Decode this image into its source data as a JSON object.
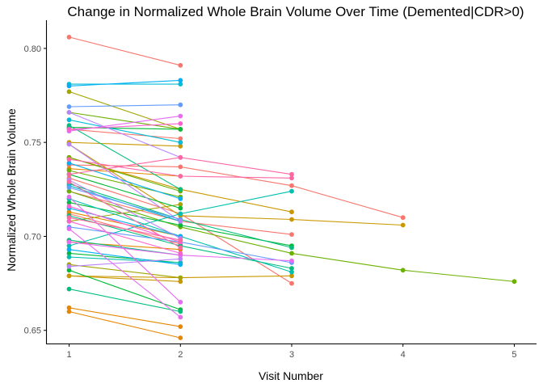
{
  "chart_data": {
    "type": "line",
    "title": "Change in Normalized Whole Brain Volume Over Time (Demented|CDR>0)",
    "xlabel": "Visit Number",
    "ylabel": "Normalized Whole Brain Volume",
    "xlim": [
      0.8,
      5.2
    ],
    "ylim": [
      0.643,
      0.815
    ],
    "xticks": [
      1,
      2,
      3,
      4,
      5
    ],
    "yticks": [
      0.65,
      0.7,
      0.75,
      0.8
    ],
    "ytick_labels": [
      "0.65",
      "0.70",
      "0.75",
      "0.80"
    ],
    "grid": false,
    "legend": "none",
    "series": [
      {
        "color": "#F8766D",
        "x": [
          1,
          2
        ],
        "y": [
          0.806,
          0.791
        ]
      },
      {
        "color": "#F8766D",
        "x": [
          1,
          2,
          3,
          4
        ],
        "y": [
          0.738,
          0.737,
          0.727,
          0.71
        ]
      },
      {
        "color": "#F8766D",
        "x": [
          1,
          2
        ],
        "y": [
          0.757,
          0.752
        ]
      },
      {
        "color": "#F8766D",
        "x": [
          1,
          2
        ],
        "y": [
          0.712,
          0.696
        ]
      },
      {
        "color": "#F8766D",
        "x": [
          1,
          2,
          3
        ],
        "y": [
          0.724,
          0.708,
          0.701
        ]
      },
      {
        "color": "#F8766D",
        "x": [
          1,
          2,
          3
        ],
        "y": [
          0.731,
          0.712,
          0.675
        ]
      },
      {
        "color": "#E58700",
        "x": [
          1,
          2
        ],
        "y": [
          0.662,
          0.652
        ]
      },
      {
        "color": "#E58700",
        "x": [
          1,
          2
        ],
        "y": [
          0.66,
          0.646
        ]
      },
      {
        "color": "#E58700",
        "x": [
          1,
          2
        ],
        "y": [
          0.697,
          0.693
        ]
      },
      {
        "color": "#E58700",
        "x": [
          1,
          2
        ],
        "y": [
          0.736,
          0.732
        ]
      },
      {
        "color": "#E58700",
        "x": [
          1,
          2
        ],
        "y": [
          0.713,
          0.7
        ]
      },
      {
        "color": "#C99800",
        "x": [
          1,
          2,
          3,
          4
        ],
        "y": [
          0.749,
          0.711,
          0.709,
          0.706
        ]
      },
      {
        "color": "#C99800",
        "x": [
          1,
          2
        ],
        "y": [
          0.75,
          0.748
        ]
      },
      {
        "color": "#C99800",
        "x": [
          1,
          2,
          3
        ],
        "y": [
          0.742,
          0.725,
          0.713
        ]
      },
      {
        "color": "#C99800",
        "x": [
          1,
          2
        ],
        "y": [
          0.679,
          0.676
        ]
      },
      {
        "color": "#C99800",
        "x": [
          1,
          2,
          3
        ],
        "y": [
          0.679,
          0.678,
          0.679
        ]
      },
      {
        "color": "#A3A500",
        "x": [
          1,
          2
        ],
        "y": [
          0.777,
          0.757
        ]
      },
      {
        "color": "#A3A500",
        "x": [
          1,
          2
        ],
        "y": [
          0.685,
          0.678
        ]
      },
      {
        "color": "#A3A500",
        "x": [
          1,
          2
        ],
        "y": [
          0.708,
          0.717
        ]
      },
      {
        "color": "#6BB100",
        "x": [
          1,
          2,
          3,
          4,
          5
        ],
        "y": [
          0.724,
          0.705,
          0.691,
          0.682,
          0.676
        ]
      },
      {
        "color": "#6BB100",
        "x": [
          1,
          2
        ],
        "y": [
          0.742,
          0.724
        ]
      },
      {
        "color": "#6BB100",
        "x": [
          1,
          2
        ],
        "y": [
          0.766,
          0.757
        ]
      },
      {
        "color": "#6BB100",
        "x": [
          1,
          2
        ],
        "y": [
          0.735,
          0.721
        ]
      },
      {
        "color": "#00BA38",
        "x": [
          1,
          2
        ],
        "y": [
          0.758,
          0.757
        ]
      },
      {
        "color": "#00BA38",
        "x": [
          1,
          2,
          3
        ],
        "y": [
          0.718,
          0.706,
          0.695
        ]
      },
      {
        "color": "#00BA38",
        "x": [
          1,
          2
        ],
        "y": [
          0.691,
          0.686
        ]
      },
      {
        "color": "#00BA38",
        "x": [
          1,
          2
        ],
        "y": [
          0.733,
          0.715
        ]
      },
      {
        "color": "#00BA38",
        "x": [
          1,
          2
        ],
        "y": [
          0.682,
          0.661
        ]
      },
      {
        "color": "#00BF7D",
        "x": [
          1,
          2
        ],
        "y": [
          0.759,
          0.725
        ]
      },
      {
        "color": "#00BF7D",
        "x": [
          1,
          2,
          3
        ],
        "y": [
          0.728,
          0.709,
          0.694
        ]
      },
      {
        "color": "#00BF7D",
        "x": [
          1,
          2,
          3
        ],
        "y": [
          0.711,
          0.695,
          0.683
        ]
      },
      {
        "color": "#00BF7D",
        "x": [
          1,
          2
        ],
        "y": [
          0.698,
          0.69
        ]
      },
      {
        "color": "#00BF7D",
        "x": [
          1,
          2
        ],
        "y": [
          0.672,
          0.66
        ]
      },
      {
        "color": "#00C0AF",
        "x": [
          1,
          2,
          3
        ],
        "y": [
          0.695,
          0.712,
          0.724
        ]
      },
      {
        "color": "#00C0AF",
        "x": [
          1,
          2,
          3
        ],
        "y": [
          0.72,
          0.7,
          0.681
        ]
      },
      {
        "color": "#00C0AF",
        "x": [
          1,
          2
        ],
        "y": [
          0.689,
          0.686
        ]
      },
      {
        "color": "#00BCD8",
        "x": [
          1,
          2
        ],
        "y": [
          0.781,
          0.781
        ]
      },
      {
        "color": "#00BCD8",
        "x": [
          1,
          2
        ],
        "y": [
          0.762,
          0.75
        ]
      },
      {
        "color": "#00BCD8",
        "x": [
          1,
          2
        ],
        "y": [
          0.727,
          0.708
        ]
      },
      {
        "color": "#00B0F6",
        "x": [
          1,
          2
        ],
        "y": [
          0.78,
          0.783
        ]
      },
      {
        "color": "#00B0F6",
        "x": [
          1,
          2
        ],
        "y": [
          0.715,
          0.7
        ]
      },
      {
        "color": "#00B0F6",
        "x": [
          1,
          2
        ],
        "y": [
          0.739,
          0.72
        ]
      },
      {
        "color": "#00B0F6",
        "x": [
          1,
          2
        ],
        "y": [
          0.693,
          0.685
        ]
      },
      {
        "color": "#619CFF",
        "x": [
          1,
          2
        ],
        "y": [
          0.769,
          0.77
        ]
      },
      {
        "color": "#619CFF",
        "x": [
          1,
          2
        ],
        "y": [
          0.726,
          0.709
        ]
      },
      {
        "color": "#619CFF",
        "x": [
          1,
          2,
          3
        ],
        "y": [
          0.705,
          0.697,
          0.686
        ]
      },
      {
        "color": "#B983FF",
        "x": [
          1,
          2
        ],
        "y": [
          0.766,
          0.742
        ]
      },
      {
        "color": "#B983FF",
        "x": [
          1,
          2
        ],
        "y": [
          0.749,
          0.708
        ]
      },
      {
        "color": "#B983FF",
        "x": [
          1,
          2
        ],
        "y": [
          0.73,
          0.699
        ]
      },
      {
        "color": "#B983FF",
        "x": [
          1,
          2
        ],
        "y": [
          0.684,
          0.688
        ]
      },
      {
        "color": "#E76BF3",
        "x": [
          1,
          2
        ],
        "y": [
          0.756,
          0.764
        ]
      },
      {
        "color": "#E76BF3",
        "x": [
          1,
          2
        ],
        "y": [
          0.721,
          0.665
        ]
      },
      {
        "color": "#E76BF3",
        "x": [
          1,
          2
        ],
        "y": [
          0.704,
          0.657
        ]
      },
      {
        "color": "#E76BF3",
        "x": [
          1,
          2,
          3
        ],
        "y": [
          0.697,
          0.69,
          0.687
        ]
      },
      {
        "color": "#FD61D1",
        "x": [
          1,
          2
        ],
        "y": [
          0.757,
          0.76
        ]
      },
      {
        "color": "#FD61D1",
        "x": [
          1,
          2
        ],
        "y": [
          0.716,
          0.697
        ]
      },
      {
        "color": "#FD61D1",
        "x": [
          1,
          2
        ],
        "y": [
          0.708,
          0.691
        ]
      },
      {
        "color": "#FF67A4",
        "x": [
          1,
          2,
          3
        ],
        "y": [
          0.733,
          0.742,
          0.733
        ]
      },
      {
        "color": "#FF67A4",
        "x": [
          1,
          2,
          3
        ],
        "y": [
          0.741,
          0.732,
          0.731
        ]
      },
      {
        "color": "#FF67A4",
        "x": [
          1,
          2
        ],
        "y": [
          0.71,
          0.698
        ]
      },
      {
        "color": "#FF67A4",
        "x": [
          1,
          2
        ],
        "y": [
          0.729,
          0.694
        ]
      }
    ]
  }
}
